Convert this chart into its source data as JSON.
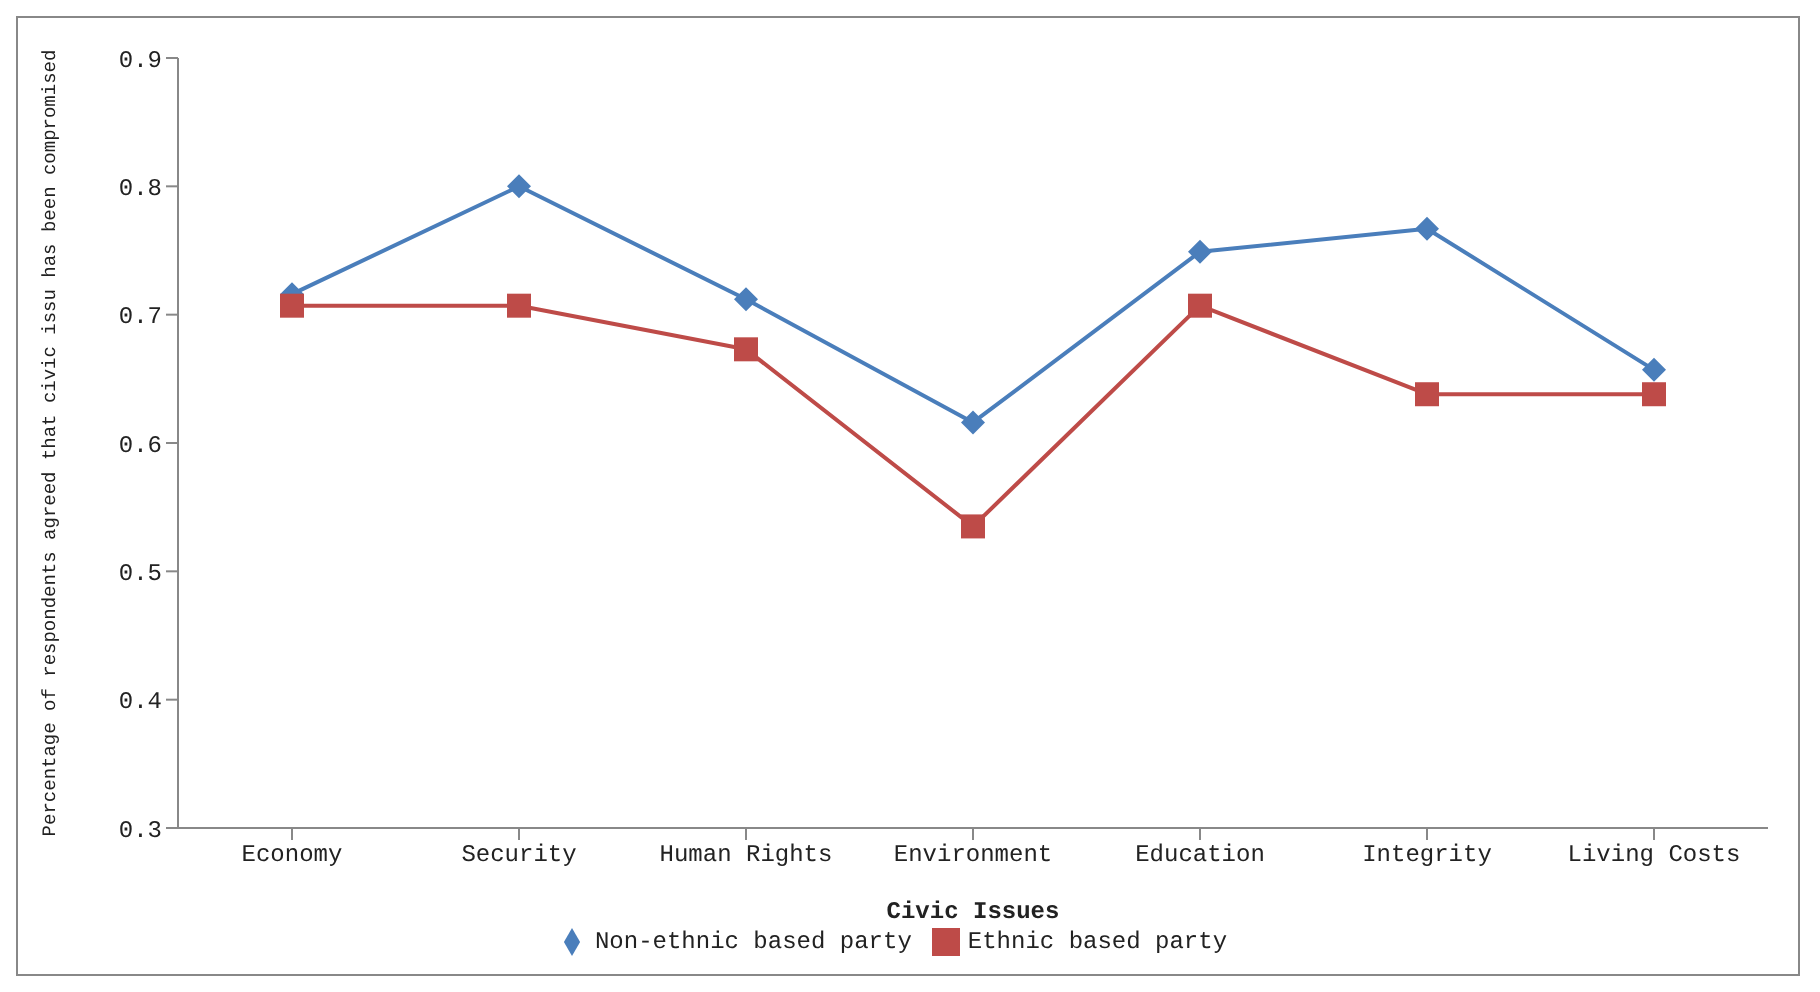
{
  "chart_data": {
    "type": "line",
    "xlabel": "Civic Issues",
    "ylabel": "Percentage of respondents agreed that civic issu has been compromised",
    "categories": [
      "Economy",
      "Security",
      "Human Rights",
      "Environment",
      "Education",
      "Integrity",
      "Living Costs"
    ],
    "series": [
      {
        "name": "Non-ethnic based party",
        "color": "#4a7ebb",
        "marker": "diamond",
        "values": [
          0.716,
          0.8,
          0.712,
          0.616,
          0.749,
          0.767,
          0.657
        ]
      },
      {
        "name": "Ethnic based party",
        "color": "#be4b48",
        "marker": "square",
        "values": [
          0.707,
          0.707,
          0.673,
          0.535,
          0.707,
          0.638,
          0.638
        ]
      }
    ],
    "ylim": [
      0.3,
      0.9
    ],
    "yticks": [
      0.3,
      0.4,
      0.5,
      0.6,
      0.7,
      0.8,
      0.9
    ],
    "grid": false,
    "legend": "bottom",
    "line_style": "solid"
  }
}
